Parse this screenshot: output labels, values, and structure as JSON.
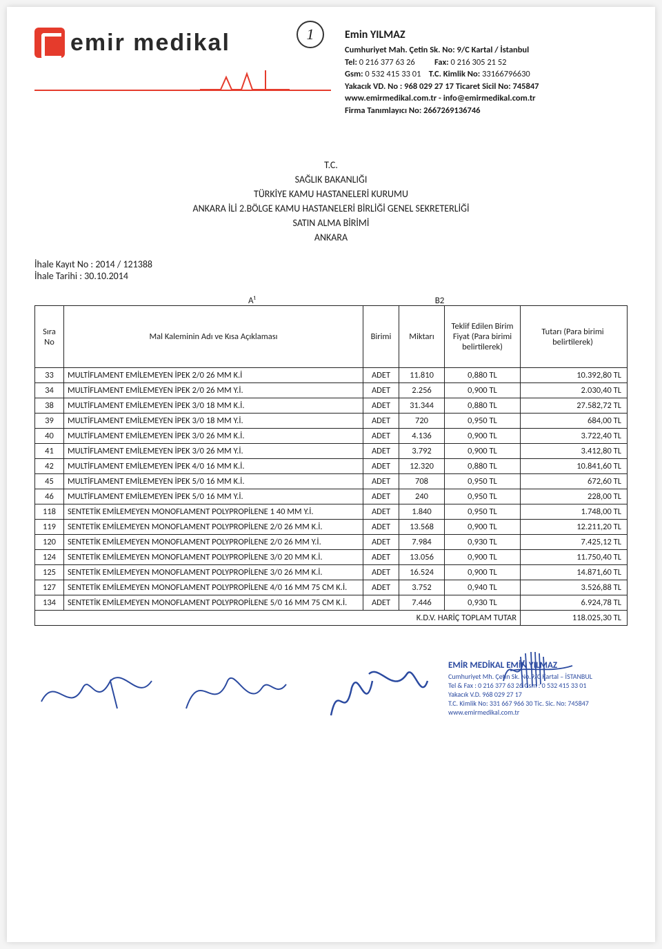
{
  "company": {
    "brand": "emir medikal",
    "page_mark": "1"
  },
  "contact": {
    "name": "Emin YILMAZ",
    "line1": "Cumhuriyet Mah. Çetin Sk. No: 9/C  Kartal / İstanbul",
    "tel_label": "Tel:",
    "tel": "0 216 377 63 26",
    "fax_label": "Fax:",
    "fax": "0 216 305 21 52",
    "gsm_label": "Gsm:",
    "gsm": "0 532 415 33 01",
    "tc_label": "T.C. Kimlik No:",
    "tc": "33166796630",
    "vd_line": "Yakacık VD. No : 968 029 27 17   Ticaret Sicil No: 745847",
    "web_line": "www.emirmedikal.com.tr - info@emirmedikal.com.tr",
    "firma_label": "Firma Tanımlayıcı No:",
    "firma_no": "2667269136746"
  },
  "heading": {
    "l1": "T.C.",
    "l2": "SAĞLIK BAKANLIĞI",
    "l3": "TÜRKİYE KAMU HASTANELERİ KURUMU",
    "l4": "ANKARA İLİ 2.BÖLGE KAMU HASTANELERİ BİRLİĞİ GENEL SEKRETERLİĞİ",
    "l5": "SATIN ALMA BİRİMİ",
    "l6": "ANKARA"
  },
  "ihale": {
    "kayit_label": "İhale Kayıt No :",
    "kayit": "2014 / 121388",
    "tarih_label": "İhale Tarihi    :",
    "tarih": "30.10.2014"
  },
  "refs": {
    "a": "A¹",
    "b": "B2"
  },
  "columns": {
    "no": "Sıra No",
    "name": "Mal Kaleminin Adı ve Kısa Açıklaması",
    "unit": "Birimi",
    "qty": "Miktarı",
    "price": "Teklif Edilen Birim Fiyat (Para birimi belirtilerek)",
    "total": "Tutarı (Para birimi belirtilerek)"
  },
  "rows": [
    {
      "no": "33",
      "name": "MULTİFLAMENT EMİLEMEYEN İPEK 2/0 26 MM K.İ",
      "unit": "ADET",
      "qty": "11.810",
      "price": "0,880 TL",
      "total": "10.392,80 TL"
    },
    {
      "no": "34",
      "name": "MULTİFLAMENT EMİLEMEYEN İPEK 2/0 26 MM Y.İ.",
      "unit": "ADET",
      "qty": "2.256",
      "price": "0,900 TL",
      "total": "2.030,40 TL"
    },
    {
      "no": "38",
      "name": "MULTİFLAMENT EMİLEMEYEN İPEK 3/0 18 MM K.İ.",
      "unit": "ADET",
      "qty": "31.344",
      "price": "0,880 TL",
      "total": "27.582,72 TL"
    },
    {
      "no": "39",
      "name": "MULTİFLAMENT EMİLEMEYEN İPEK 3/0 18 MM Y.İ.",
      "unit": "ADET",
      "qty": "720",
      "price": "0,950 TL",
      "total": "684,00 TL"
    },
    {
      "no": "40",
      "name": "MULTİFLAMENT EMİLEMEYEN İPEK 3/0 26 MM K.İ.",
      "unit": "ADET",
      "qty": "4.136",
      "price": "0,900 TL",
      "total": "3.722,40 TL"
    },
    {
      "no": "41",
      "name": "MULTİFLAMENT EMİLEMEYEN İPEK 3/0 26 MM Y.İ.",
      "unit": "ADET",
      "qty": "3.792",
      "price": "0,900 TL",
      "total": "3.412,80 TL"
    },
    {
      "no": "42",
      "name": "MULTİFLAMENT EMİLEMEYEN İPEK 4/0 16 MM K.İ.",
      "unit": "ADET",
      "qty": "12.320",
      "price": "0,880 TL",
      "total": "10.841,60 TL"
    },
    {
      "no": "45",
      "name": "MULTİFLAMENT EMİLEMEYEN İPEK 5/0 16 MM K.İ.",
      "unit": "ADET",
      "qty": "708",
      "price": "0,950 TL",
      "total": "672,60 TL"
    },
    {
      "no": "46",
      "name": "MULTİFLAMENT EMİLEMEYEN İPEK 5/0 16 MM Y.İ.",
      "unit": "ADET",
      "qty": "240",
      "price": "0,950 TL",
      "total": "228,00 TL"
    },
    {
      "no": "118",
      "name": "SENTETİK EMİLEMEYEN MONOFLAMENT POLYPROPİLENE 1 40 MM Y.İ.",
      "unit": "ADET",
      "qty": "1.840",
      "price": "0,950 TL",
      "total": "1.748,00 TL"
    },
    {
      "no": "119",
      "name": "SENTETİK EMİLEMEYEN MONOFLAMENT POLYPROPİLENE 2/0 26 MM K.İ.",
      "unit": "ADET",
      "qty": "13.568",
      "price": "0,900 TL",
      "total": "12.211,20 TL"
    },
    {
      "no": "120",
      "name": "SENTETİK EMİLEMEYEN MONOFLAMENT POLYPROPİLENE 2/0 26 MM Y.İ.",
      "unit": "ADET",
      "qty": "7.984",
      "price": "0,930 TL",
      "total": "7.425,12 TL"
    },
    {
      "no": "124",
      "name": "SENTETİK EMİLEMEYEN MONOFLAMENT POLYPROPİLENE 3/0 20 MM K.İ.",
      "unit": "ADET",
      "qty": "13.056",
      "price": "0,900 TL",
      "total": "11.750,40 TL"
    },
    {
      "no": "125",
      "name": "SENTETİK EMİLEMEYEN MONOFLAMENT POLYPROPİLENE 3/0 26 MM K.İ.",
      "unit": "ADET",
      "qty": "16.524",
      "price": "0,900 TL",
      "total": "14.871,60 TL"
    },
    {
      "no": "127",
      "name": "SENTETİK EMİLEMEYEN MONOFLAMENT POLYPROPİLENE 4/0 16 MM 75 CM K.İ.",
      "unit": "ADET",
      "qty": "3.752",
      "price": "0,940 TL",
      "total": "3.526,88 TL"
    },
    {
      "no": "134",
      "name": "SENTETİK EMİLEMEYEN MONOFLAMENT POLYPROPİLENE 5/0 16 MM 75 CM K.İ.",
      "unit": "ADET",
      "qty": "7.446",
      "price": "0,930 TL",
      "total": "6.924,78 TL"
    }
  ],
  "grand_total": {
    "label": "K.D.V. HARİÇ TOPLAM TUTAR",
    "value": "118.025,30 TL"
  },
  "stamp": {
    "title": "EMİR MEDİKAL  EMİN YILMAZ",
    "l1": "Cumhuriyet Mh. Çetin Sk. No.9/C Kartal – İSTANBUL",
    "l2": "Tel & Fax : 0 216 377 63 26  Gsm : 0 532 415 33 01",
    "l3": "Yakacık V.D. 968 029 27 17",
    "l4": "T.C. Kimlik No: 331 667 966 30  Tic. Sic. No: 745847",
    "l5": "www.emirmedikal.com.tr"
  },
  "colors": {
    "accent": "#e53b2c",
    "ink": "#1a1a1a",
    "pen_blue": "#2b4aa0"
  }
}
